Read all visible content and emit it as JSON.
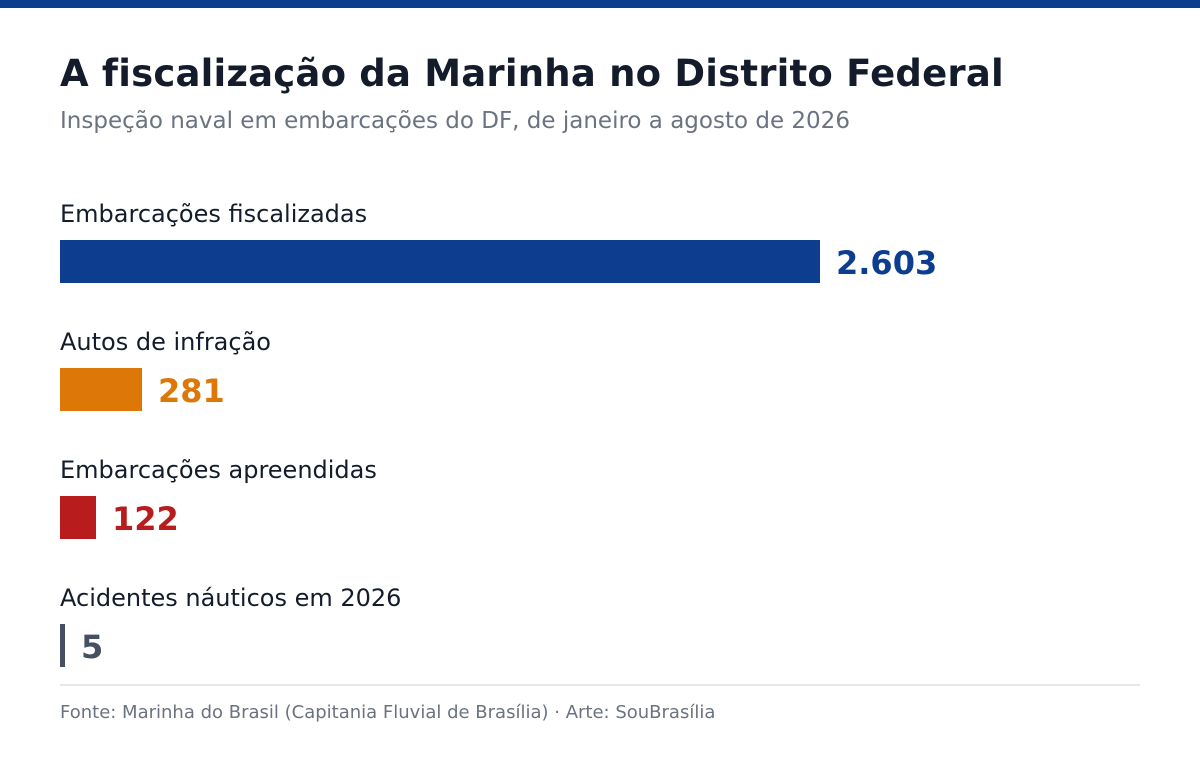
{
  "header": {
    "title": "A fiscalização da Marinha no Distrito Federal",
    "subtitle": "Inspeção naval em embarcações do DF, de janeiro a agosto de 2026"
  },
  "footer": {
    "source": "Fonte: Marinha do Brasil (Capitania Fluvial de Brasília) · Arte: SouBrasília"
  },
  "colors": {
    "accent": "#0d3d8f",
    "bars": [
      "#0d3d8f",
      "#dd7808",
      "#b91c1c",
      "#475063"
    ]
  },
  "chart_data": {
    "type": "bar",
    "orientation": "horizontal",
    "title": "A fiscalização da Marinha no Distrito Federal",
    "subtitle": "Inspeção naval em embarcações do DF, de janeiro a agosto de 2026",
    "categories": [
      "Embarcações fiscalizadas",
      "Autos de infração",
      "Embarcações apreendidas",
      "Acidentes náuticos em 2026"
    ],
    "values": [
      2603,
      281,
      122,
      5
    ],
    "value_labels": [
      "2.603",
      "281",
      "122",
      "5"
    ],
    "xlim": [
      0,
      3700
    ],
    "grid": false,
    "legend": "none"
  }
}
